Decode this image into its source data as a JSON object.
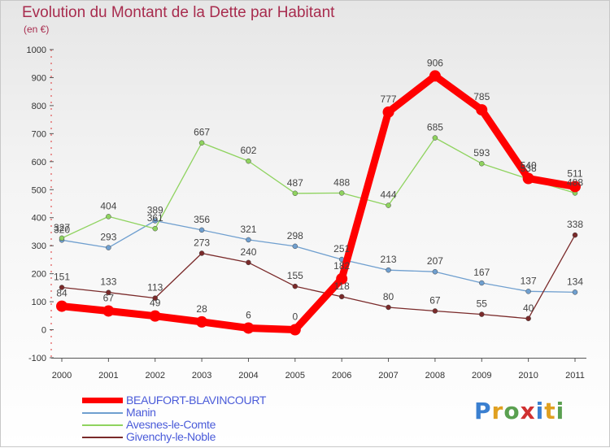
{
  "title": "Evolution du Montant de la Dette par Habitant",
  "unit_label": "(en €)",
  "logo_text": "Proxiti",
  "chart_data": {
    "type": "line",
    "title": "Evolution du Montant de la Dette par Habitant",
    "ylabel": "(en €)",
    "xlabel": "",
    "ylim": [
      -100,
      1000
    ],
    "yticks": [
      -100,
      0,
      100,
      200,
      300,
      400,
      500,
      600,
      700,
      800,
      900,
      1000
    ],
    "grid": false,
    "legend_position": "bottom",
    "x": [
      "2000",
      "2001",
      "2002",
      "2003",
      "2004",
      "2005",
      "2006",
      "2007",
      "2008",
      "2009",
      "2010",
      "2011"
    ],
    "series": [
      {
        "name": "Manin",
        "color": "#6f9fcf",
        "values": [
          320,
          293,
          389,
          356,
          321,
          298,
          251,
          213,
          207,
          167,
          137,
          134
        ]
      },
      {
        "name": "Avesnes-le-Comte",
        "color": "#8fd35f",
        "values": [
          327,
          404,
          361,
          667,
          602,
          487,
          488,
          444,
          685,
          593,
          538,
          488
        ]
      },
      {
        "name": "Givenchy-le-Noble",
        "color": "#7a2a2a",
        "values": [
          151,
          133,
          113,
          273,
          240,
          155,
          118,
          80,
          67,
          55,
          40,
          338
        ]
      },
      {
        "name": "BEAUFORT-BLAVINCOURT",
        "color": "#ff0000",
        "values": [
          84,
          67,
          49,
          28,
          6,
          0,
          182,
          777,
          906,
          785,
          540,
          511
        ]
      }
    ],
    "legend_order": [
      "BEAUFORT-BLAVINCOURT",
      "Manin",
      "Avesnes-le-Comte",
      "Givenchy-le-Noble"
    ]
  }
}
